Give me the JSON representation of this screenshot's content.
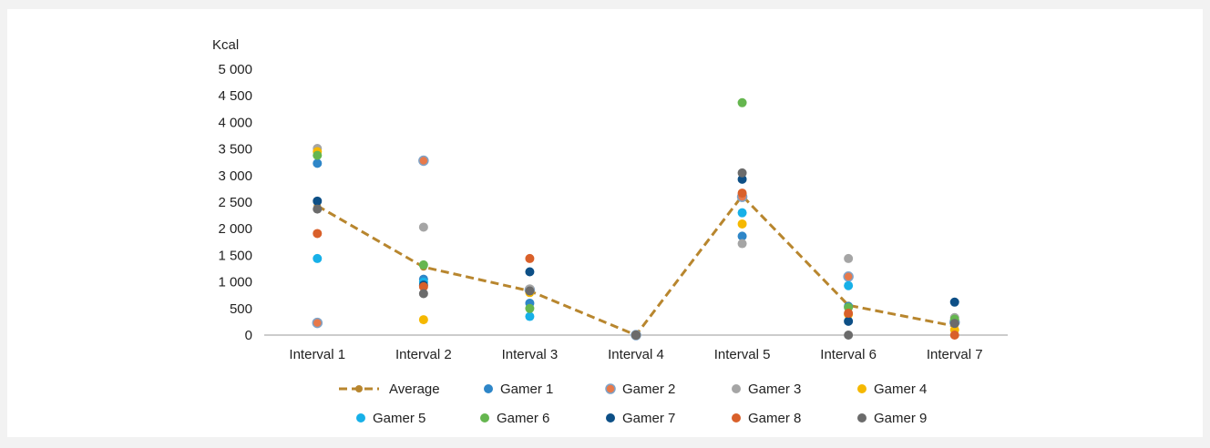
{
  "chart_data": {
    "type": "scatter",
    "title": "",
    "xlabel": "",
    "ylabel": "Kcal",
    "ylim": [
      0,
      5000
    ],
    "y_ticks": [
      "0",
      "500",
      "1 000",
      "1 500",
      "2 000",
      "2 500",
      "3 000",
      "3 500",
      "4 000",
      "4 500",
      "5 000"
    ],
    "y_tick_values": [
      0,
      500,
      1000,
      1500,
      2000,
      2500,
      3000,
      3500,
      4000,
      4500,
      5000
    ],
    "grid": false,
    "legend_position": "bottom",
    "categories": [
      "Interval 1",
      "Interval 2",
      "Interval 3",
      "Interval 4",
      "Interval 5",
      "Interval 6",
      "Interval 7"
    ],
    "series": [
      {
        "name": "Average",
        "style": "dashed-line-markers",
        "color": "#b8862e",
        "values": [
          2430,
          1280,
          830,
          0,
          2620,
          560,
          170
        ]
      },
      {
        "name": "Gamer 1",
        "style": "marker",
        "color": "#2e86c8",
        "values": [
          3230,
          1050,
          600,
          0,
          1860,
          540,
          260
        ]
      },
      {
        "name": "Gamer 2",
        "style": "marker",
        "color": "#e8794a",
        "stroke": "#7fa3c8",
        "values": [
          230,
          3280,
          850,
          0,
          2600,
          1100,
          240
        ]
      },
      {
        "name": "Gamer 3",
        "style": "marker",
        "color": "#a5a5a5",
        "values": [
          3510,
          2030,
          870,
          0,
          1720,
          1440,
          330
        ]
      },
      {
        "name": "Gamer 4",
        "style": "marker",
        "color": "#f5b800",
        "values": [
          3450,
          290,
          800,
          0,
          2090,
          390,
          100
        ]
      },
      {
        "name": "Gamer 5",
        "style": "marker",
        "color": "#17b0e8",
        "values": [
          1440,
          1000,
          350,
          0,
          2300,
          930,
          230
        ]
      },
      {
        "name": "Gamer 6",
        "style": "marker",
        "color": "#65b64f",
        "values": [
          3380,
          1320,
          500,
          0,
          4370,
          520,
          300
        ]
      },
      {
        "name": "Gamer 7",
        "style": "marker",
        "color": "#0d4f86",
        "values": [
          2520,
          940,
          1190,
          0,
          2930,
          260,
          620
        ]
      },
      {
        "name": "Gamer 8",
        "style": "marker",
        "color": "#d9602a",
        "values": [
          1910,
          910,
          1440,
          0,
          2670,
          410,
          0
        ]
      },
      {
        "name": "Gamer 9",
        "style": "marker",
        "color": "#6b6b6b",
        "values": [
          2370,
          780,
          830,
          0,
          3050,
          0,
          220
        ]
      }
    ]
  }
}
